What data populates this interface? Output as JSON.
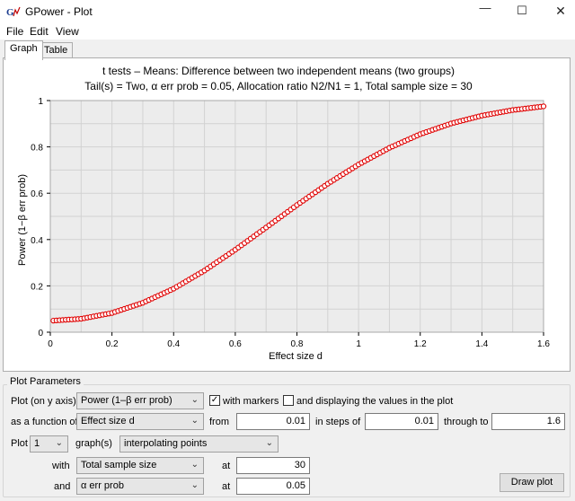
{
  "window": {
    "title": "GPower - Plot",
    "icon": "gpower-app-icon",
    "controls": [
      "minimize-icon",
      "maximize-icon",
      "close-icon"
    ]
  },
  "menu": {
    "file": "File",
    "edit": "Edit",
    "view": "View"
  },
  "tabs": {
    "graph": "Graph",
    "table": "Table",
    "active": "Graph"
  },
  "chart_data": {
    "type": "scatter",
    "title": "t tests – Means: Difference between two independent means (two groups)",
    "subtitle": "Tail(s) = Two, α err prob = 0.05, Allocation ratio N2/N1 = 1, Total sample size = 30",
    "xlabel": "Effect size d",
    "ylabel": "Power (1−β err prob)",
    "xlim": [
      0,
      1.6
    ],
    "ylim": [
      0,
      1
    ],
    "x_ticks": [
      "0",
      "0.2",
      "0.4",
      "0.6",
      "0.8",
      "1",
      "1.2",
      "1.4",
      "1.6"
    ],
    "y_ticks": [
      "0",
      "0.2",
      "0.4",
      "0.6",
      "0.8",
      "1"
    ],
    "grid": true,
    "marker_color": "#e00000",
    "series": [
      {
        "x": [
          0.01,
          0.1,
          0.2,
          0.3,
          0.4,
          0.5,
          0.6,
          0.7,
          0.8,
          0.9,
          1.0,
          1.1,
          1.2,
          1.3,
          1.4,
          1.5,
          1.6
        ],
        "values": [
          0.05,
          0.058,
          0.083,
          0.127,
          0.188,
          0.266,
          0.356,
          0.452,
          0.549,
          0.641,
          0.724,
          0.796,
          0.855,
          0.901,
          0.935,
          0.959,
          0.975
        ],
        "step": 0.01
      }
    ]
  },
  "params": {
    "legend": "Plot Parameters",
    "y_axis_label": "Plot (on y axis)",
    "y_axis_value": "Power (1–β err prob)",
    "with_markers_label": "with markers",
    "with_markers_checked": true,
    "display_values_label": "and displaying the values in the plot",
    "display_values_checked": false,
    "function_label": "as a function of",
    "function_value": "Effect size d",
    "from_label": "from",
    "from_value": "0.01",
    "steps_label": "in steps of",
    "steps_value": "0.01",
    "through_label": "through to",
    "through_value": "1.6",
    "plot_label": "Plot",
    "plot_count": "1",
    "graphs_label": "graph(s)",
    "graphs_value": "interpolating points",
    "with_label": "with",
    "with_value": "Total sample size",
    "at1_label": "at",
    "at1_value": "30",
    "and_label": "and",
    "and_value": "α err prob",
    "at2_label": "at",
    "at2_value": "0.05",
    "draw_button": "Draw plot"
  }
}
